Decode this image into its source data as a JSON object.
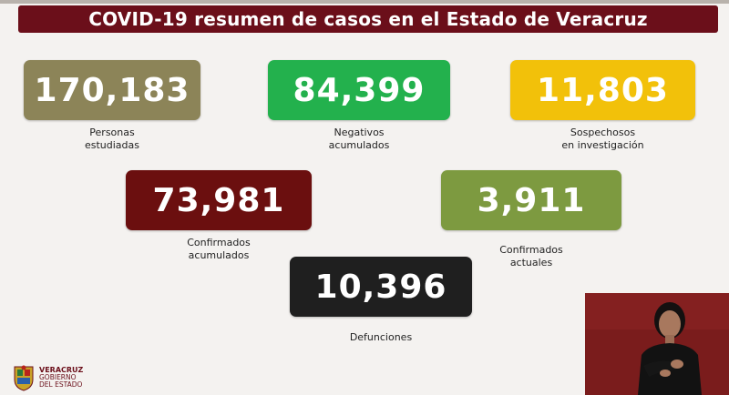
{
  "header": {
    "title": "COVID-19 resumen de casos en el Estado de Veracruz"
  },
  "stats": [
    {
      "value": "170,183",
      "label_line1": "Personas",
      "label_line2": "estudiadas",
      "color": "#8c8458"
    },
    {
      "value": "84,399",
      "label_line1": "Negativos",
      "label_line2": "acumulados",
      "color": "#23b14d"
    },
    {
      "value": "11,803",
      "label_line1": "Sospechosos",
      "label_line2": "en investigación",
      "color": "#f2c10a"
    },
    {
      "value": "73,981",
      "label_line1": "Confirmados",
      "label_line2": "acumulados",
      "color": "#6b0f0f"
    },
    {
      "value": "3,911",
      "label_line1": "Confirmados",
      "label_line2": "actuales",
      "color": "#7d9a40"
    },
    {
      "value": "10,396",
      "label_line1": "Defunciones",
      "label_line2": "",
      "color": "#1f1f1f"
    }
  ],
  "footer": {
    "logo_line1": "VERACRUZ",
    "logo_line2": "GOBIERNO",
    "logo_line3": "DEL ESTADO"
  },
  "colors": {
    "header_bg": "#6b0f1a",
    "background": "#f4f2f0",
    "interpreter_bg": "#7a1c1c"
  },
  "icons": {
    "logo": "veracruz-coat-of-arms-icon",
    "interpreter": "sign-language-interpreter-video"
  }
}
